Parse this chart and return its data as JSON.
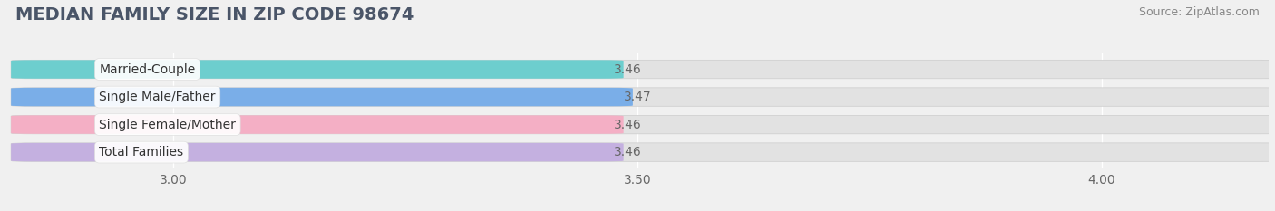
{
  "title": "MEDIAN FAMILY SIZE IN ZIP CODE 98674",
  "source": "Source: ZipAtlas.com",
  "categories": [
    "Married-Couple",
    "Single Male/Father",
    "Single Female/Mother",
    "Total Families"
  ],
  "values": [
    3.46,
    3.47,
    3.46,
    3.46
  ],
  "bar_colors": [
    "#6dcece",
    "#7aaee8",
    "#f4afc5",
    "#c4b0e0"
  ],
  "xlim": [
    2.82,
    4.18
  ],
  "xmin": 2.85,
  "xticks": [
    3.0,
    3.5,
    4.0
  ],
  "xtick_labels": [
    "3.00",
    "3.50",
    "4.00"
  ],
  "bar_height": 0.62,
  "label_color": "#666666",
  "title_color": "#4a5568",
  "title_fontsize": 14,
  "tick_fontsize": 10,
  "value_fontsize": 10,
  "cat_fontsize": 10,
  "background_color": "#f0f0f0",
  "bar_bg_color": "#e2e2e2",
  "grid_color": "#ffffff",
  "source_color": "#888888"
}
